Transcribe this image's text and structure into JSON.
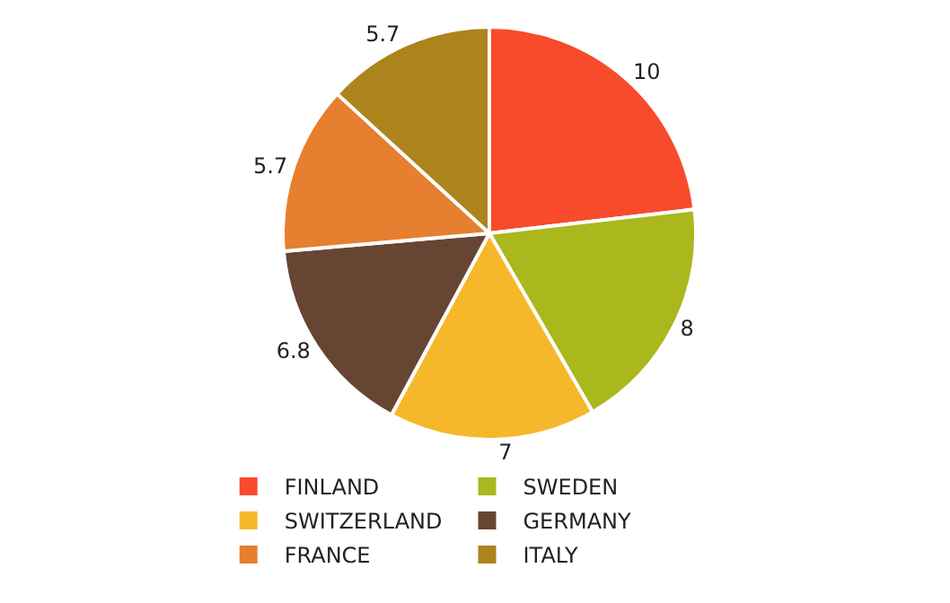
{
  "chart_data": {
    "type": "pie",
    "categories": [
      "FINLAND",
      "SWEDEN",
      "SWITZERLAND",
      "GERMANY",
      "FRANCE",
      "ITALY"
    ],
    "values": [
      10,
      8,
      7,
      6.8,
      5.7,
      5.7
    ],
    "colors": [
      "#f74b2b",
      "#aab71d",
      "#f6b82a",
      "#674533",
      "#e67f2f",
      "#ad831c"
    ],
    "data_labels": true,
    "legend": "bottom"
  }
}
